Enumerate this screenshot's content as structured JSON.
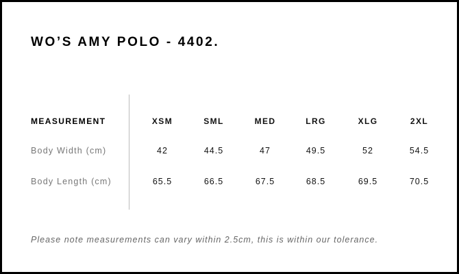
{
  "title": "WO’S AMY POLO - 4402.",
  "table": {
    "header_label": "MEASUREMENT",
    "sizes": [
      "XSM",
      "SML",
      "MED",
      "LRG",
      "XLG",
      "2XL"
    ],
    "rows": [
      {
        "label": "Body Width (cm)",
        "values": [
          "42",
          "44.5",
          "47",
          "49.5",
          "52",
          "54.5"
        ]
      },
      {
        "label": "Body Length (cm)",
        "values": [
          "65.5",
          "66.5",
          "67.5",
          "68.5",
          "69.5",
          "70.5"
        ]
      }
    ]
  },
  "note": "Please note measurements can vary within 2.5cm, this is within our tolerance."
}
